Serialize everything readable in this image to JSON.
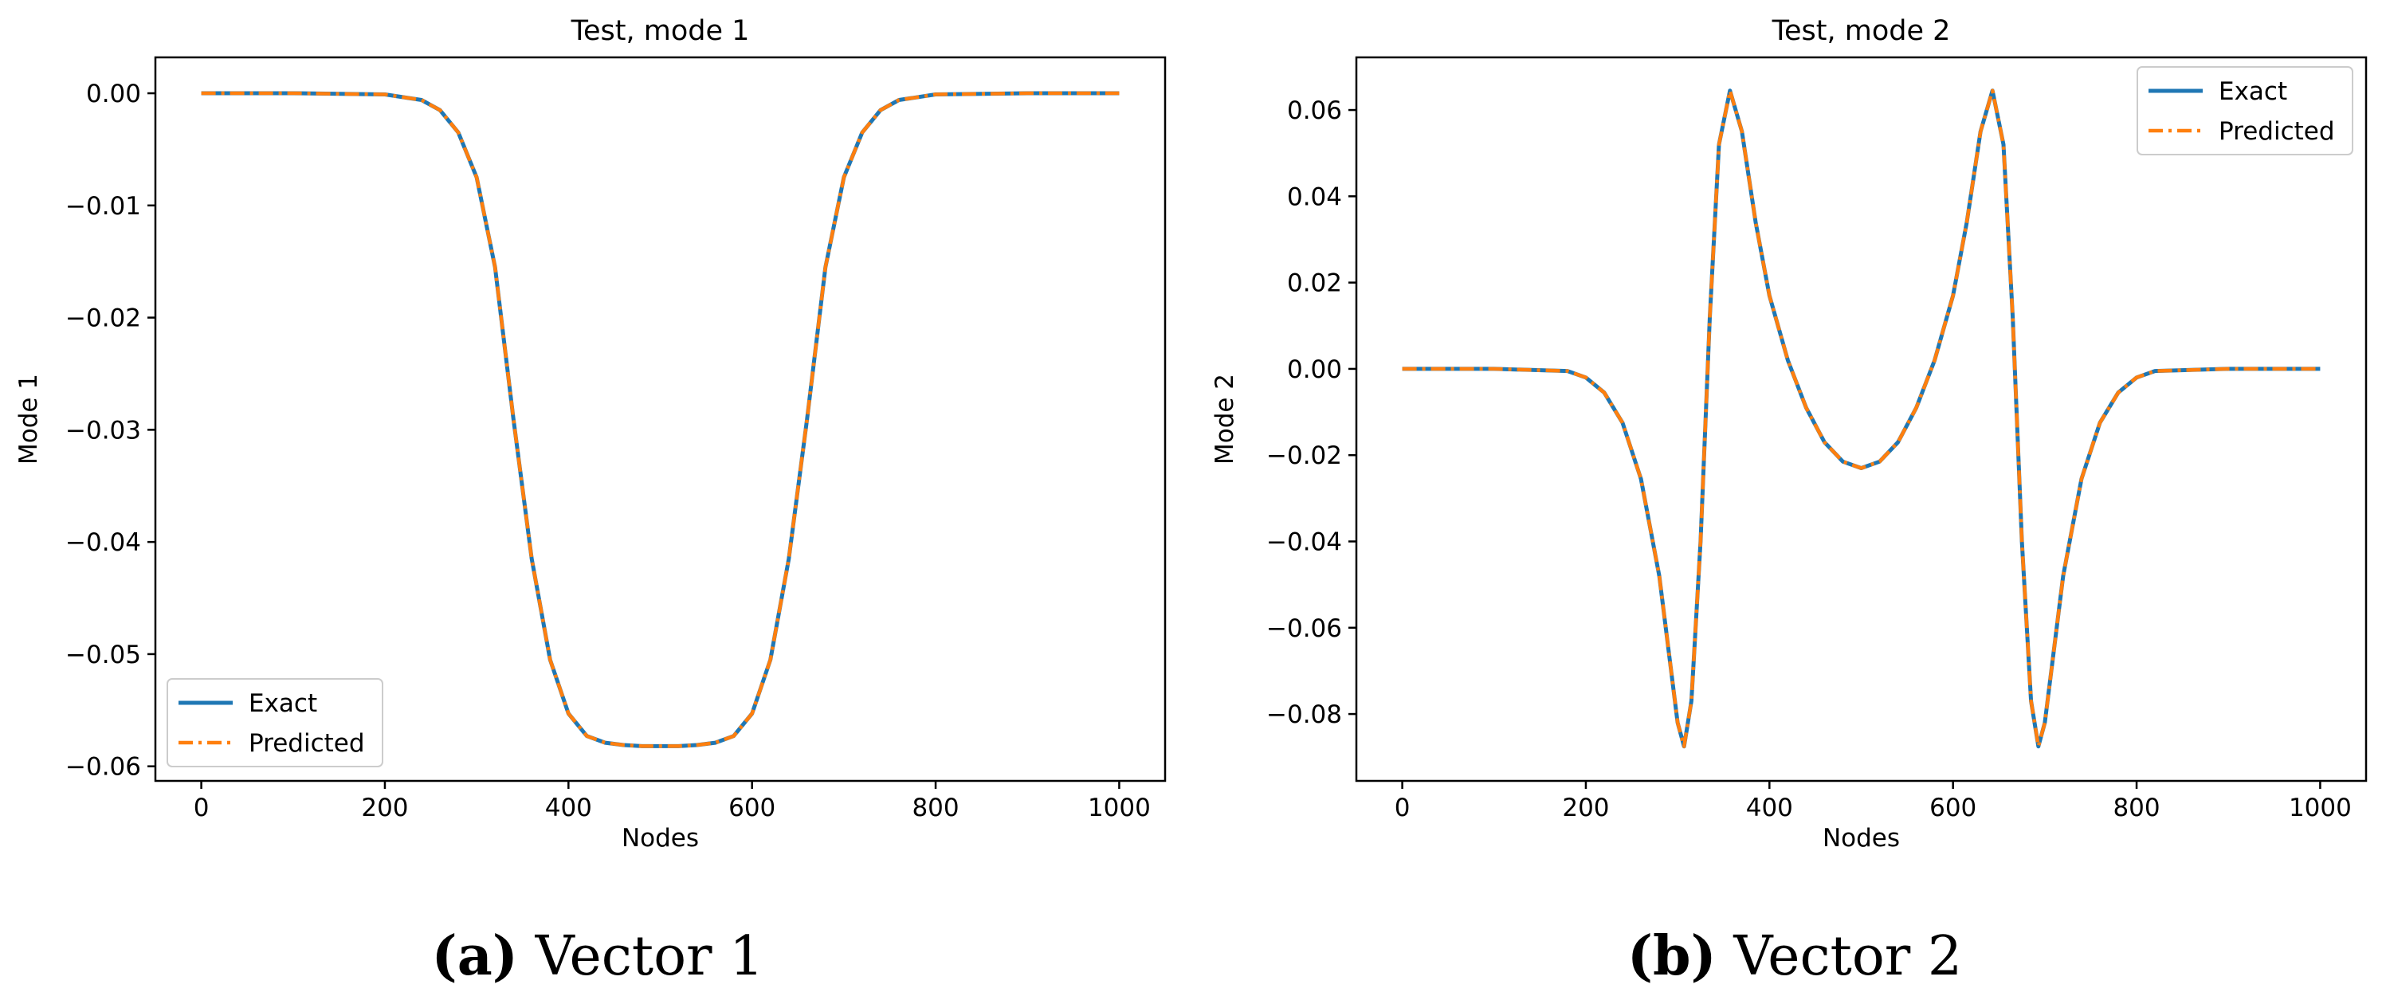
{
  "chart_data": [
    {
      "type": "line",
      "title": "Test, mode 1",
      "xlabel": "Nodes",
      "ylabel": "Mode 1",
      "xlim": [
        -50,
        1050
      ],
      "ylim": [
        -0.0613,
        0.0032
      ],
      "xticks": [
        0,
        200,
        400,
        600,
        800,
        1000
      ],
      "xtick_labels": [
        "0",
        "200",
        "400",
        "600",
        "800",
        "1000"
      ],
      "yticks": [
        0.0,
        -0.01,
        -0.02,
        -0.03,
        -0.04,
        -0.05,
        -0.06
      ],
      "ytick_labels": [
        "0.00",
        "−0.01",
        "−0.02",
        "−0.03",
        "−0.04",
        "−0.05",
        "−0.06"
      ],
      "grid": false,
      "legend_position": "lower left",
      "x": [
        0,
        100,
        200,
        240,
        260,
        280,
        300,
        320,
        340,
        360,
        380,
        400,
        420,
        440,
        460,
        480,
        500,
        520,
        540,
        560,
        580,
        600,
        620,
        640,
        660,
        680,
        700,
        720,
        740,
        760,
        800,
        900,
        1000
      ],
      "series": [
        {
          "name": "Exact",
          "color": "#1f77b4",
          "style": "solid",
          "values": [
            0.0,
            0.0,
            -0.0001,
            -0.0006,
            -0.0015,
            -0.0035,
            -0.0075,
            -0.0155,
            -0.029,
            -0.0415,
            -0.0505,
            -0.0553,
            -0.0573,
            -0.0579,
            -0.0581,
            -0.0582,
            -0.0582,
            -0.0582,
            -0.0581,
            -0.0579,
            -0.0573,
            -0.0553,
            -0.0505,
            -0.0415,
            -0.029,
            -0.0155,
            -0.0075,
            -0.0035,
            -0.0015,
            -0.0006,
            -0.0001,
            0.0,
            0.0
          ]
        },
        {
          "name": "Predicted",
          "color": "#ff7f0e",
          "style": "dashdot",
          "values": [
            0.0,
            0.0,
            -0.0001,
            -0.0006,
            -0.0015,
            -0.0035,
            -0.0075,
            -0.0155,
            -0.029,
            -0.0415,
            -0.0505,
            -0.0553,
            -0.0573,
            -0.0579,
            -0.0581,
            -0.0582,
            -0.0582,
            -0.0582,
            -0.0581,
            -0.0579,
            -0.0573,
            -0.0553,
            -0.0505,
            -0.0415,
            -0.029,
            -0.0155,
            -0.0075,
            -0.0035,
            -0.0015,
            -0.0006,
            -0.0001,
            0.0,
            0.0
          ]
        }
      ]
    },
    {
      "type": "line",
      "title": "Test, mode 2",
      "xlabel": "Nodes",
      "ylabel": "Mode 2",
      "xlim": [
        -50,
        1050
      ],
      "ylim": [
        -0.0955,
        0.0722
      ],
      "xticks": [
        0,
        200,
        400,
        600,
        800,
        1000
      ],
      "xtick_labels": [
        "0",
        "200",
        "400",
        "600",
        "800",
        "1000"
      ],
      "yticks": [
        0.06,
        0.04,
        0.02,
        0.0,
        -0.02,
        -0.04,
        -0.06,
        -0.08
      ],
      "ytick_labels": [
        "0.06",
        "0.04",
        "0.02",
        "0.00",
        "−0.02",
        "−0.04",
        "−0.06",
        "−0.08"
      ],
      "grid": false,
      "legend_position": "upper right",
      "x": [
        0,
        100,
        180,
        200,
        220,
        240,
        260,
        280,
        300,
        307,
        315,
        325,
        335,
        345,
        357,
        370,
        385,
        400,
        420,
        440,
        460,
        480,
        500,
        520,
        540,
        560,
        580,
        600,
        615,
        630,
        643,
        655,
        665,
        675,
        685,
        693,
        700,
        720,
        740,
        760,
        780,
        800,
        820,
        900,
        1000
      ],
      "series": [
        {
          "name": "Exact",
          "color": "#1f77b4",
          "style": "solid",
          "values": [
            0.0,
            0.0,
            -0.0005,
            -0.002,
            -0.0055,
            -0.0125,
            -0.0255,
            -0.048,
            -0.082,
            -0.0875,
            -0.077,
            -0.04,
            0.012,
            0.052,
            0.0645,
            0.055,
            0.034,
            0.017,
            0.002,
            -0.009,
            -0.017,
            -0.0215,
            -0.023,
            -0.0215,
            -0.017,
            -0.009,
            0.002,
            0.017,
            0.034,
            0.055,
            0.0645,
            0.052,
            0.012,
            -0.04,
            -0.077,
            -0.0875,
            -0.082,
            -0.048,
            -0.0255,
            -0.0125,
            -0.0055,
            -0.002,
            -0.0005,
            0.0,
            0.0
          ]
        },
        {
          "name": "Predicted",
          "color": "#ff7f0e",
          "style": "dashdot",
          "values": [
            0.0,
            0.0,
            -0.0005,
            -0.002,
            -0.0055,
            -0.0125,
            -0.0255,
            -0.048,
            -0.082,
            -0.0875,
            -0.077,
            -0.04,
            0.012,
            0.052,
            0.0645,
            0.055,
            0.034,
            0.017,
            0.002,
            -0.009,
            -0.017,
            -0.0215,
            -0.023,
            -0.0215,
            -0.017,
            -0.009,
            0.002,
            0.017,
            0.034,
            0.055,
            0.0645,
            0.052,
            0.012,
            -0.04,
            -0.077,
            -0.0875,
            -0.082,
            -0.048,
            -0.0255,
            -0.0125,
            -0.0055,
            -0.002,
            -0.0005,
            0.0,
            0.0
          ]
        }
      ]
    }
  ],
  "captions": [
    {
      "letter": "(a)",
      "text": "Vector 1"
    },
    {
      "letter": "(b)",
      "text": "Vector 2"
    }
  ]
}
